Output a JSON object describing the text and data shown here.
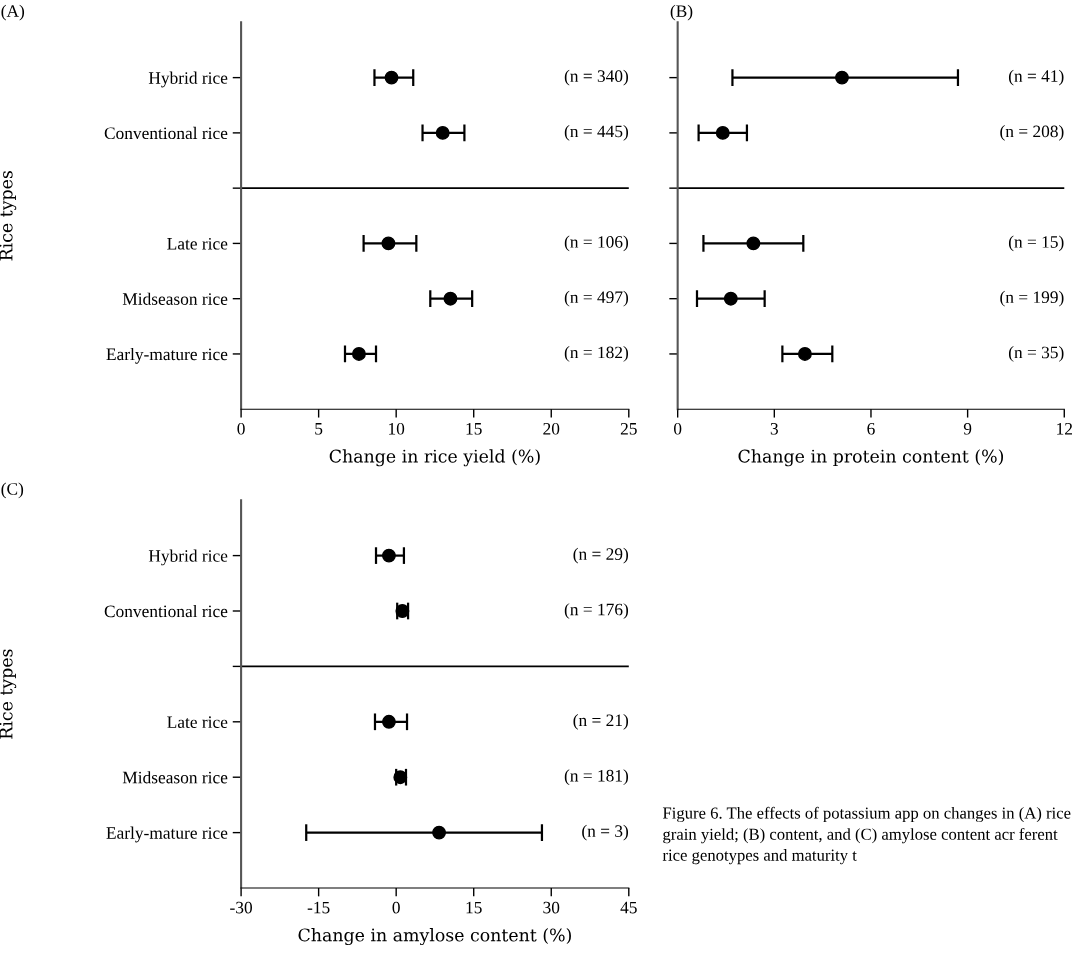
{
  "chart_data": [
    {
      "type": "scatter",
      "orientation": "horizontal",
      "title": "(A)",
      "ylabel": "Rice types",
      "xlabel": "Change in rice yield (%)",
      "categories": [
        "Hybrid rice",
        "Conventional rice",
        null,
        "Late rice",
        "Midseason rice",
        "Early-mature rice"
      ],
      "values": [
        9.7,
        13.0,
        null,
        9.5,
        13.5,
        7.6
      ],
      "errors": [
        [
          8.6,
          11.1
        ],
        [
          11.7,
          14.4
        ],
        null,
        [
          7.9,
          11.3
        ],
        [
          12.2,
          14.9
        ],
        [
          6.7,
          8.7
        ]
      ],
      "color": "#000000",
      "marker": "circle",
      "xlim": [
        0,
        25
      ],
      "xticks": [
        0,
        5,
        10,
        15,
        20,
        25
      ],
      "ref_lines": [
        {
          "axis": "y"
        }
      ],
      "grid": false,
      "legend": false,
      "annotations": [
        "(n = 340)",
        "(n = 445)",
        "(n = 106)",
        "(n = 497)",
        "(n = 182)"
      ]
    },
    {
      "type": "scatter",
      "orientation": "horizontal",
      "title": "(B)",
      "xlabel": "Change in protein content (%)",
      "categories": [
        null,
        null,
        null,
        null,
        null,
        null
      ],
      "values": [
        5.1,
        1.4,
        null,
        2.35,
        1.65,
        3.95
      ],
      "errors": [
        [
          1.7,
          8.7
        ],
        [
          0.65,
          2.15
        ],
        null,
        [
          0.8,
          3.9
        ],
        [
          0.6,
          2.7
        ],
        [
          3.25,
          4.8
        ]
      ],
      "color": "#000000",
      "marker": "circle",
      "xlim": [
        0,
        12
      ],
      "xticks": [
        0,
        3,
        6,
        9,
        12
      ],
      "tick_labels": "x",
      "ref_lines": [
        {
          "axis": "y"
        }
      ],
      "grid": false,
      "legend": false,
      "annotations": [
        "(n = 41)",
        "(n = 208)",
        "(n = 15)",
        "(n = 199)",
        "(n = 35)"
      ]
    },
    {
      "type": "scatter",
      "orientation": "horizontal",
      "title": "(C)",
      "ylabel": "Rice types",
      "xlabel": "Change in amylose content (%)",
      "categories": [
        "Hybrid rice",
        "Conventional rice",
        null,
        "Late rice",
        "Midseason rice",
        "Early-mature rice"
      ],
      "values": [
        -1.4,
        1.2,
        null,
        -1.4,
        0.8,
        8.3
      ],
      "errors": [
        [
          -3.9,
          1.5
        ],
        [
          0.2,
          2.3
        ],
        null,
        [
          -4.1,
          2.1
        ],
        [
          0.0,
          1.9
        ],
        [
          -17.4,
          28.2
        ]
      ],
      "color": "#000000",
      "marker": "circle",
      "xlim": [
        -30,
        45
      ],
      "xticks": [
        {
          "value": -30,
          "label": "-30"
        },
        {
          "value": -15,
          "label": "-15"
        },
        0,
        15,
        30,
        45
      ],
      "ref_lines": [
        {
          "axis": "y"
        }
      ],
      "grid": false,
      "legend": false,
      "annotations": [
        "(n = 29)",
        "(n = 176)",
        "(n = 21)",
        "(n = 181)",
        "(n = 3)",
        "Figure 6. The effects of potassium app on changes in (A) rice grain yield; (B) content, and (C) amylose content acr ferent rice genotypes and maturity t"
      ]
    }
  ]
}
